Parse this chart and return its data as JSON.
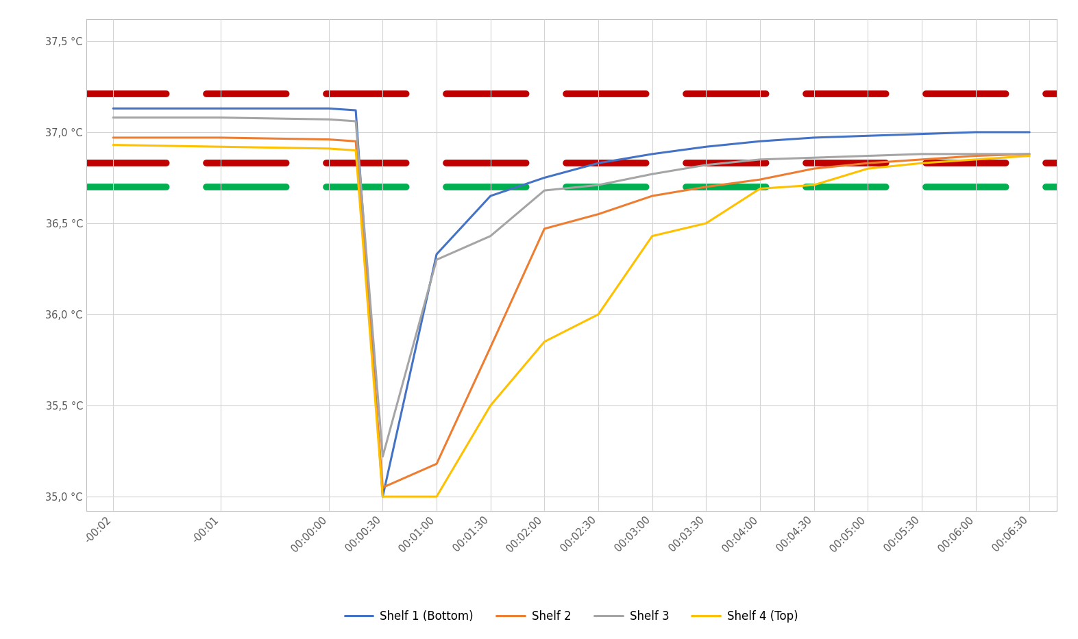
{
  "background_color": "#ffffff",
  "grid_color": "#d4d4d4",
  "ylim": [
    34.92,
    37.62
  ],
  "yticks": [
    35.0,
    35.5,
    36.0,
    36.5,
    37.0,
    37.5
  ],
  "ytick_labels": [
    "35,0 °C",
    "35,5 °C",
    "36,0 °C",
    "36,5 °C",
    "37,0 °C",
    "37,5 °C"
  ],
  "xtick_values": [
    -120,
    -60,
    0,
    30,
    60,
    90,
    120,
    150,
    180,
    210,
    240,
    270,
    300,
    330,
    360,
    390
  ],
  "xtick_labels": [
    "-00:02",
    "-00:01",
    "00:00:00",
    "00:00:30",
    "00:01:00",
    "00:01:30",
    "00:02:00",
    "00:02:30",
    "00:03:00",
    "00:03:30",
    "00:04:00",
    "00:04:30",
    "00:05:00",
    "00:05:30",
    "00:06:00",
    "00:06:30"
  ],
  "xlim": [
    -135,
    405
  ],
  "hlines": [
    {
      "y": 37.21,
      "color": "#c00000",
      "linestyle": "--",
      "linewidth": 7,
      "dashes": [
        12,
        6
      ]
    },
    {
      "y": 36.83,
      "color": "#c00000",
      "linestyle": "--",
      "linewidth": 7,
      "dashes": [
        12,
        6
      ]
    },
    {
      "y": 36.7,
      "color": "#00b050",
      "linestyle": "--",
      "linewidth": 7,
      "dashes": [
        12,
        6
      ]
    }
  ],
  "series": [
    {
      "name": "Shelf 1 (Bottom)",
      "color": "#4472c4",
      "linewidth": 2.2,
      "x": [
        -120,
        -60,
        0,
        15,
        30,
        60,
        90,
        120,
        150,
        180,
        210,
        240,
        270,
        300,
        330,
        360,
        390
      ],
      "y": [
        37.13,
        37.13,
        37.13,
        37.12,
        35.0,
        36.33,
        36.65,
        36.75,
        36.83,
        36.88,
        36.92,
        36.95,
        36.97,
        36.98,
        36.99,
        37.0,
        37.0
      ]
    },
    {
      "name": "Shelf 2",
      "color": "#ed7d31",
      "linewidth": 2.2,
      "x": [
        -120,
        -60,
        0,
        15,
        30,
        60,
        90,
        120,
        150,
        180,
        210,
        240,
        270,
        300,
        330,
        360,
        390
      ],
      "y": [
        36.97,
        36.97,
        36.96,
        36.95,
        35.05,
        35.18,
        35.82,
        36.47,
        36.55,
        36.65,
        36.7,
        36.74,
        36.8,
        36.83,
        36.85,
        36.87,
        36.88
      ]
    },
    {
      "name": "Shelf 3",
      "color": "#a5a5a5",
      "linewidth": 2.2,
      "x": [
        -120,
        -60,
        0,
        15,
        30,
        60,
        90,
        120,
        150,
        180,
        210,
        240,
        270,
        300,
        330,
        360,
        390
      ],
      "y": [
        37.08,
        37.08,
        37.07,
        37.06,
        35.22,
        36.3,
        36.43,
        36.68,
        36.71,
        36.77,
        36.82,
        36.85,
        36.86,
        36.87,
        36.88,
        36.88,
        36.88
      ]
    },
    {
      "name": "Shelf 4 (Top)",
      "color": "#ffc000",
      "linewidth": 2.2,
      "x": [
        -120,
        -60,
        0,
        15,
        30,
        60,
        90,
        120,
        150,
        180,
        210,
        240,
        270,
        300,
        330,
        360,
        390
      ],
      "y": [
        36.93,
        36.92,
        36.91,
        36.9,
        35.0,
        35.0,
        35.5,
        35.85,
        36.0,
        36.43,
        36.5,
        36.69,
        36.71,
        36.8,
        36.83,
        36.85,
        36.87
      ]
    }
  ],
  "figsize": [
    15.73,
    9.33
  ],
  "dpi": 100
}
